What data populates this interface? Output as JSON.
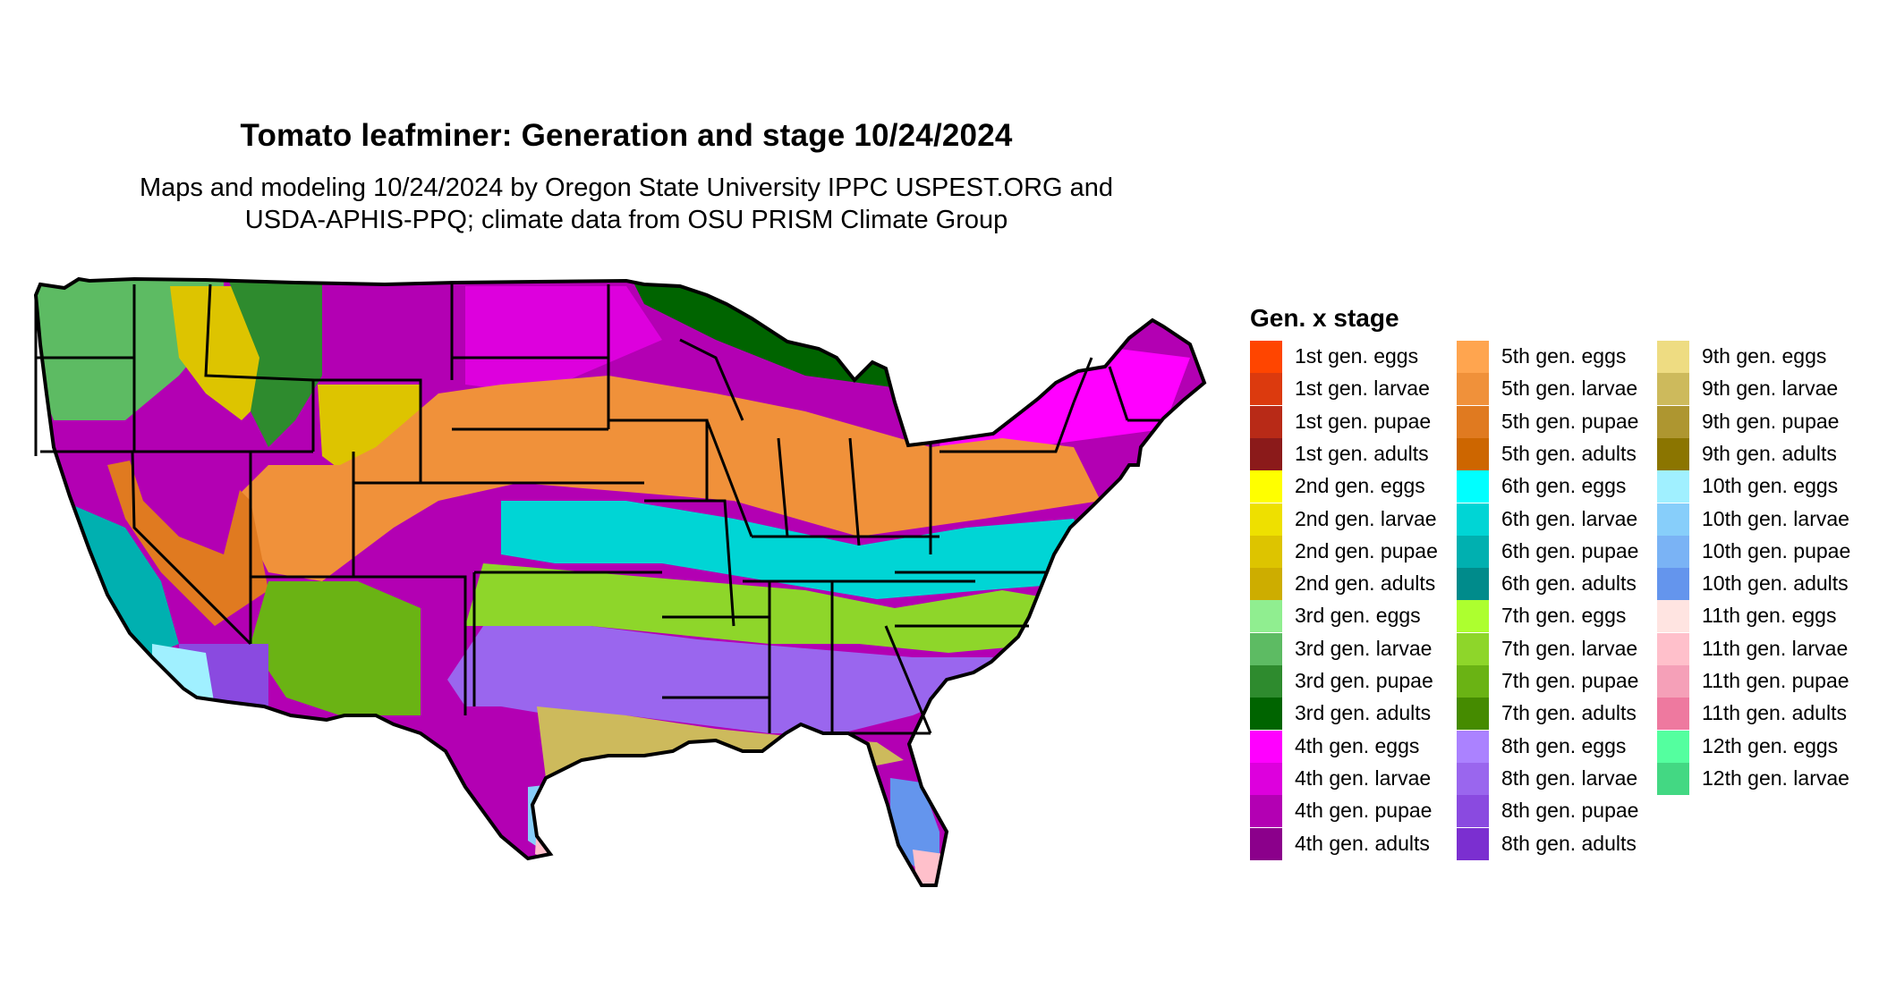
{
  "title": "Tomato leafminer: Generation and stage 10/24/2024",
  "subtitle_line1": "Maps and modeling 10/24/2024 by Oregon State University IPPC USPEST.ORG and",
  "subtitle_line2": "USDA-APHIS-PPQ; climate data from OSU PRISM Climate Group",
  "legend": {
    "title": "Gen. x stage",
    "items": [
      {
        "label": "1st gen. eggs",
        "color": "#FF4500"
      },
      {
        "label": "1st gen. larvae",
        "color": "#DC3A0E"
      },
      {
        "label": "1st gen. pupae",
        "color": "#B82A17"
      },
      {
        "label": "1st gen. adults",
        "color": "#8B1A1A"
      },
      {
        "label": "2nd gen. eggs",
        "color": "#FFFF00"
      },
      {
        "label": "2nd gen. larvae",
        "color": "#EEE000"
      },
      {
        "label": "2nd gen. pupae",
        "color": "#DDC400"
      },
      {
        "label": "2nd gen. adults",
        "color": "#CDAD00"
      },
      {
        "label": "3rd gen. eggs",
        "color": "#90EE90"
      },
      {
        "label": "3rd gen. larvae",
        "color": "#5DBB63"
      },
      {
        "label": "3rd gen. pupae",
        "color": "#2E8B2E"
      },
      {
        "label": "3rd gen. adults",
        "color": "#006400"
      },
      {
        "label": "4th gen. eggs",
        "color": "#FF00FF"
      },
      {
        "label": "4th gen. larvae",
        "color": "#DD00DD"
      },
      {
        "label": "4th gen. pupae",
        "color": "#B300B3"
      },
      {
        "label": "4th gen. adults",
        "color": "#8B008B"
      },
      {
        "label": "5th gen. eggs",
        "color": "#FFA54F"
      },
      {
        "label": "5th gen. larvae",
        "color": "#F0913A"
      },
      {
        "label": "5th gen. pupae",
        "color": "#E07A20"
      },
      {
        "label": "5th gen. adults",
        "color": "#CD6600"
      },
      {
        "label": "6th gen. eggs",
        "color": "#00FFFF"
      },
      {
        "label": "6th gen. larvae",
        "color": "#00D5D5"
      },
      {
        "label": "6th gen. pupae",
        "color": "#00B0B0"
      },
      {
        "label": "6th gen. adults",
        "color": "#008B8B"
      },
      {
        "label": "7th gen. eggs",
        "color": "#ADFF2F"
      },
      {
        "label": "7th gen. larvae",
        "color": "#8ED62A"
      },
      {
        "label": "7th gen. pupae",
        "color": "#6AB314"
      },
      {
        "label": "7th gen. adults",
        "color": "#458B00"
      },
      {
        "label": "8th gen. eggs",
        "color": "#AB82FF"
      },
      {
        "label": "8th gen. larvae",
        "color": "#9A66EE"
      },
      {
        "label": "8th gen. pupae",
        "color": "#8A4AE0"
      },
      {
        "label": "8th gen. adults",
        "color": "#7B2FD0"
      },
      {
        "label": "9th gen. eggs",
        "color": "#EEDC82"
      },
      {
        "label": "9th gen. larvae",
        "color": "#CDBA5C"
      },
      {
        "label": "9th gen. pupae",
        "color": "#AE9630"
      },
      {
        "label": "9th gen. adults",
        "color": "#8B7500"
      },
      {
        "label": "10th gen. eggs",
        "color": "#A0F0FF"
      },
      {
        "label": "10th gen. larvae",
        "color": "#87CEFA"
      },
      {
        "label": "10th gen. pupae",
        "color": "#7AB3F5"
      },
      {
        "label": "10th gen. adults",
        "color": "#6495ED"
      },
      {
        "label": "11th gen. eggs",
        "color": "#FFE4E1"
      },
      {
        "label": "11th gen. larvae",
        "color": "#FFC0CB"
      },
      {
        "label": "11th gen. pupae",
        "color": "#F5A0B8"
      },
      {
        "label": "11th gen. adults",
        "color": "#EE799F"
      },
      {
        "label": "12th gen. eggs",
        "color": "#54FF9F"
      },
      {
        "label": "12th gen. larvae",
        "color": "#43D883"
      }
    ]
  }
}
